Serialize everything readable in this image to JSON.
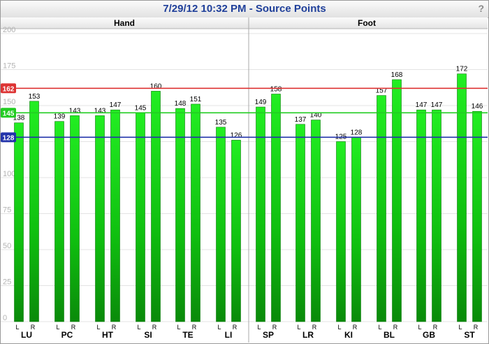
{
  "window": {
    "title": "7/29/12 10:32 PM - Source Points",
    "help_label": "?"
  },
  "chart_data": {
    "type": "bar",
    "title": "7/29/12 10:32 PM - Source Points",
    "ylim": [
      0,
      200
    ],
    "yticks": [
      0,
      25,
      50,
      75,
      100,
      125,
      150,
      175,
      200
    ],
    "grid": true,
    "legend": "none",
    "bar_color": "#00cc00",
    "regions": [
      {
        "name": "Hand",
        "groups": [
          {
            "name": "LU",
            "L": 138,
            "R": 153
          },
          {
            "name": "PC",
            "L": 139,
            "R": 143
          },
          {
            "name": "HT",
            "L": 143,
            "R": 147
          },
          {
            "name": "SI",
            "L": 145,
            "R": 160
          },
          {
            "name": "TE",
            "L": 148,
            "R": 151
          },
          {
            "name": "LI",
            "L": 135,
            "R": 126
          }
        ]
      },
      {
        "name": "Foot",
        "groups": [
          {
            "name": "SP",
            "L": 149,
            "R": 158
          },
          {
            "name": "LR",
            "L": 137,
            "R": 140
          },
          {
            "name": "KI",
            "L": 125,
            "R": 128
          },
          {
            "name": "BL",
            "L": 157,
            "R": 168
          },
          {
            "name": "GB",
            "L": 147,
            "R": 147
          },
          {
            "name": "ST",
            "L": 172,
            "R": 146
          }
        ]
      }
    ],
    "side_labels": [
      "L",
      "R"
    ],
    "reference_lines": [
      {
        "value": 162,
        "label": "162",
        "color": "#dd3333"
      },
      {
        "value": 145,
        "label": "145",
        "color": "#22cc22"
      },
      {
        "value": 128,
        "label": "128",
        "color": "#2233aa"
      }
    ]
  }
}
